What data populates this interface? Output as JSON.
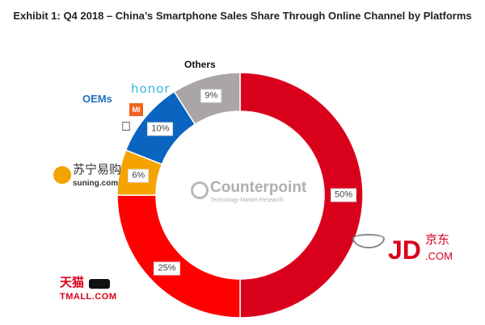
{
  "title": "Exhibit 1: Q4 2018 – China’s Smartphone Sales Share Through Online Channel by Platforms",
  "chart_data": {
    "type": "pie",
    "donut": true,
    "title": "Exhibit 1: Q4 2018 – China’s Smartphone Sales Share Through Online Channel by Platforms",
    "slices": [
      {
        "name": "JD.com",
        "value": 50,
        "label": "50%",
        "color": "#d9001b"
      },
      {
        "name": "Tmall.com",
        "value": 25,
        "label": "25%",
        "color": "#ff0000"
      },
      {
        "name": "Suning.com",
        "value": 6,
        "label": "6%",
        "color": "#f5a300"
      },
      {
        "name": "OEMs",
        "value": 10,
        "label": "10%",
        "color": "#0a64c0"
      },
      {
        "name": "Others",
        "value": 9,
        "label": "9%",
        "color": "#aba6a6"
      }
    ]
  },
  "legend_labels": {
    "others": "Others",
    "oems": "OEMs",
    "honor": "honor",
    "mi": "MI",
    "apple": "",
    "suning_cn": "苏宁易购",
    "suning_en": "suning.com",
    "tmall_cn": "天猫",
    "tmall_en": "TMALL.COM",
    "jd_big": "JD",
    "jd_cn": "京东",
    "jd_en": ".COM"
  },
  "watermark": {
    "name": "Counterpoint",
    "sub": "Technology Market Research"
  }
}
